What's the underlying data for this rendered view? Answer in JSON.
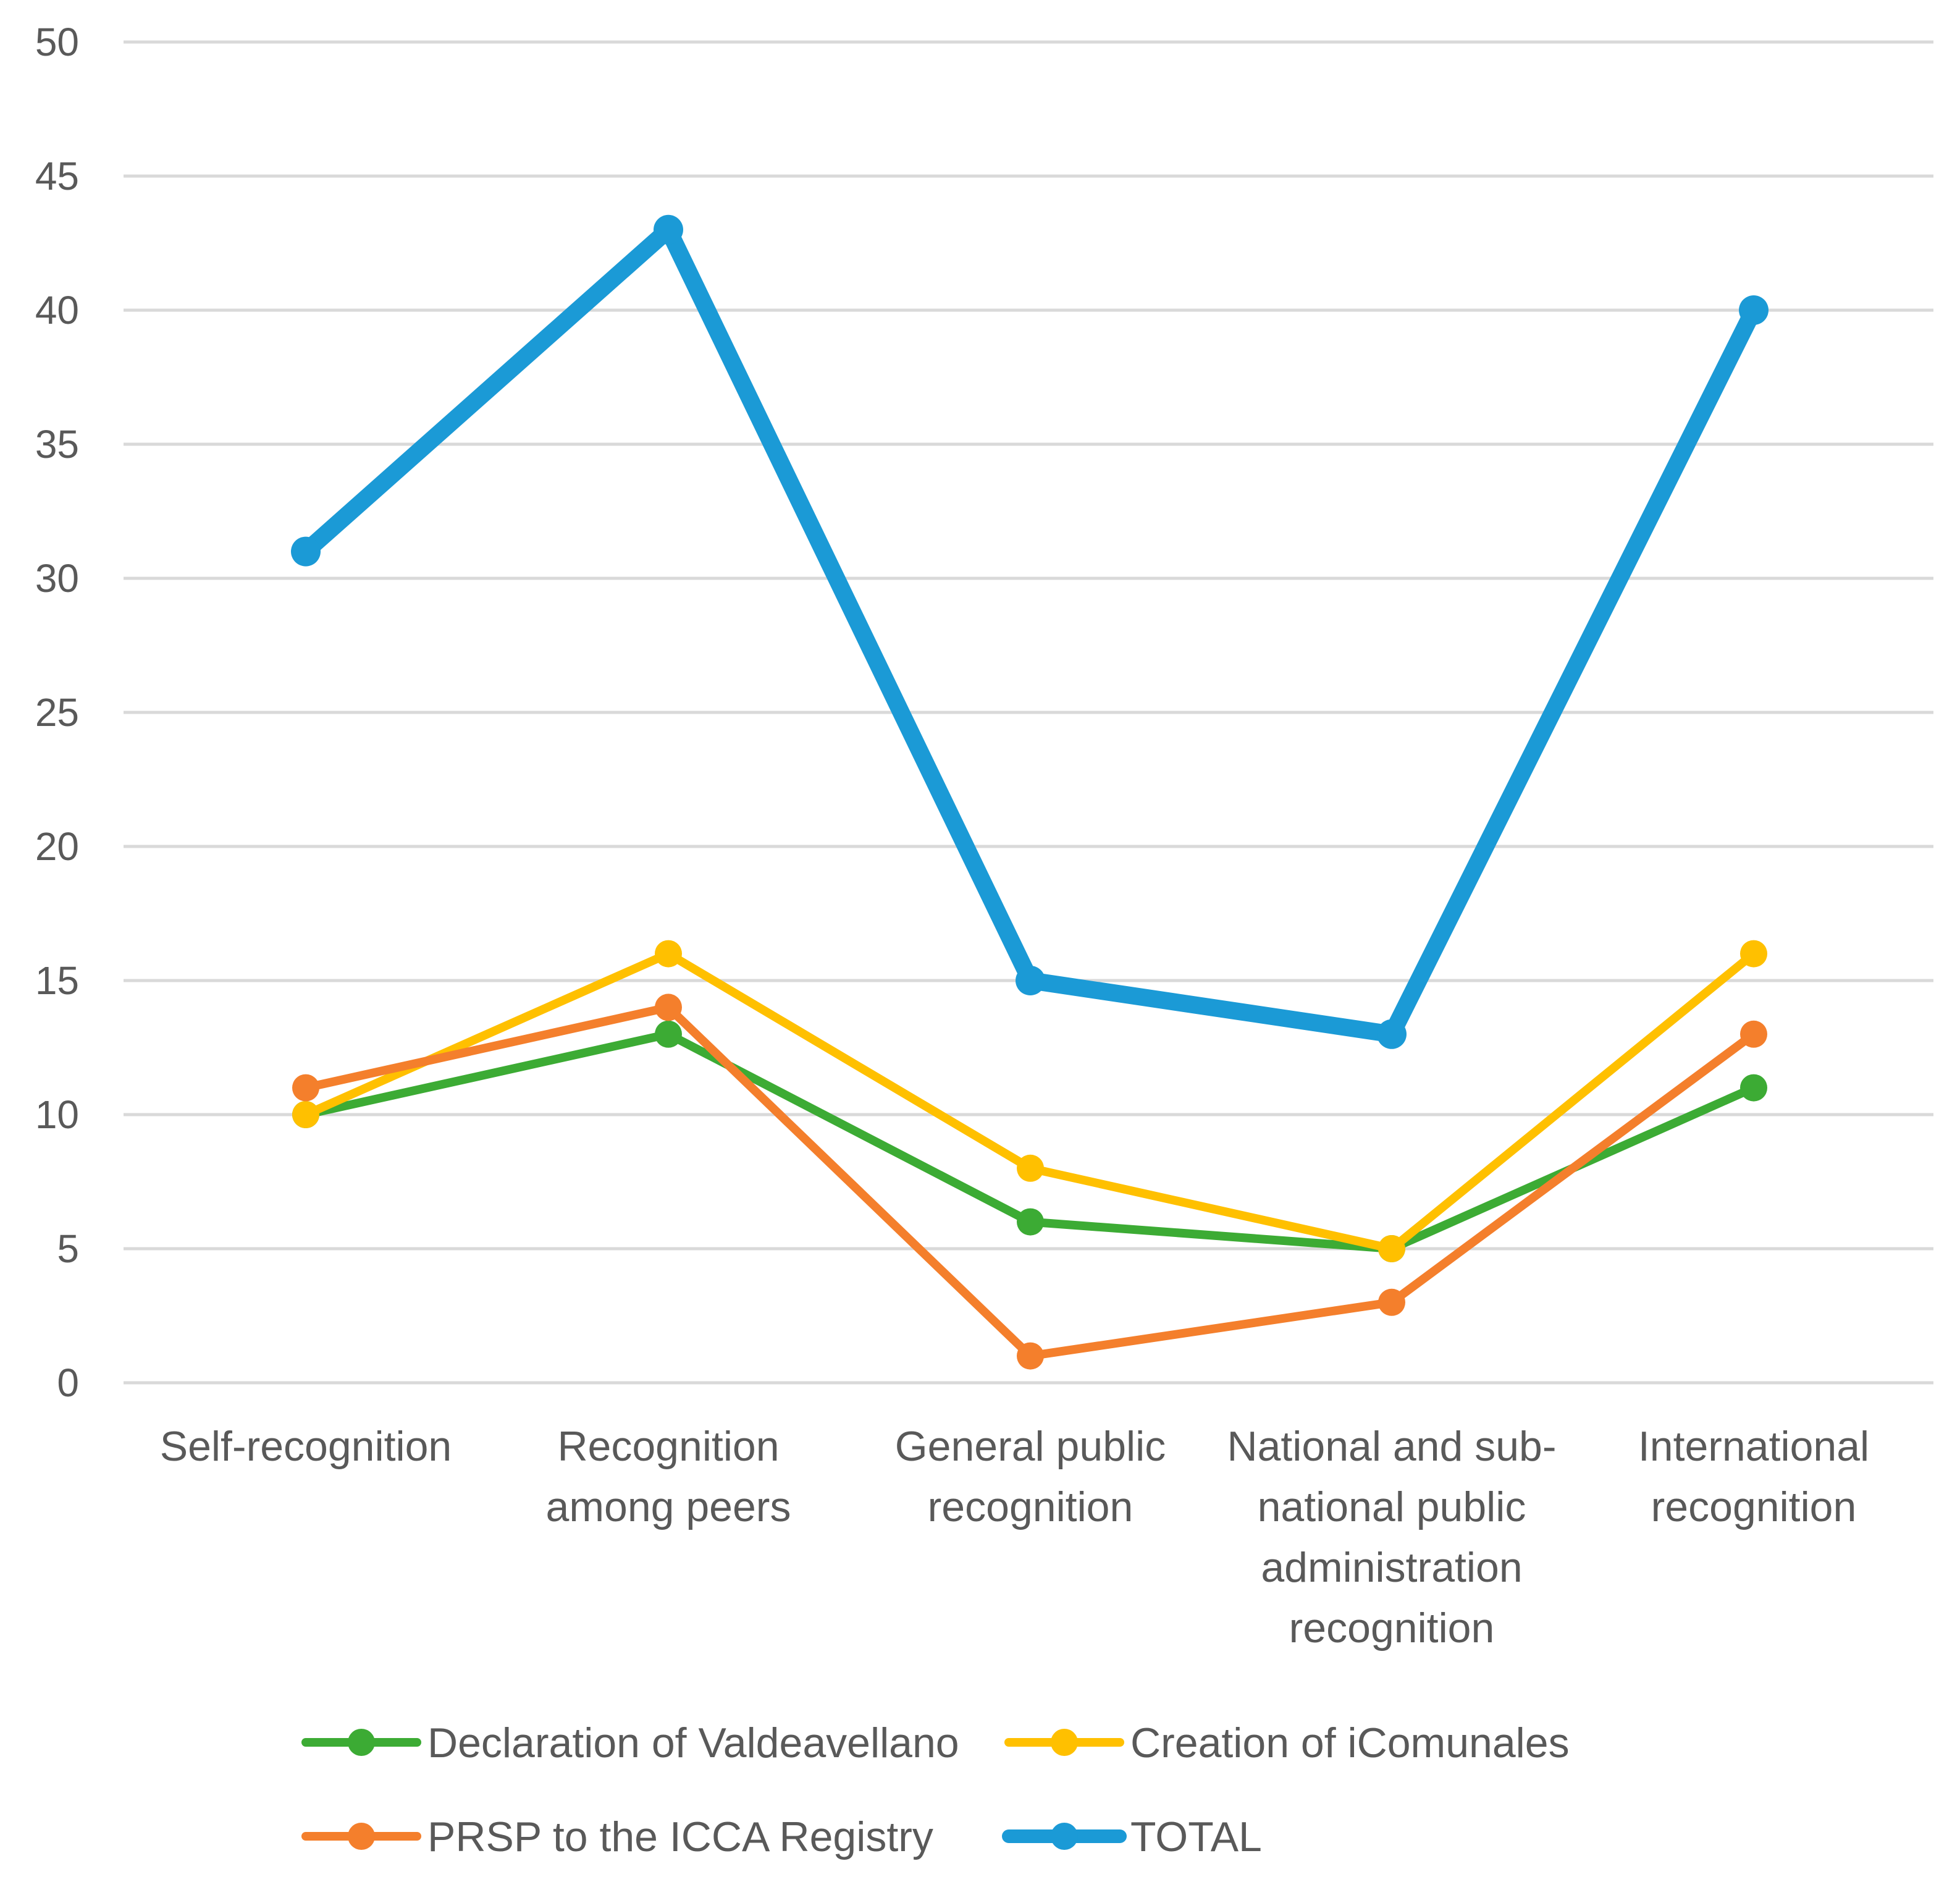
{
  "chart_data": {
    "type": "line",
    "title": "",
    "xlabel": "",
    "ylabel": "",
    "ylim": [
      0,
      50
    ],
    "yticks": [
      0,
      5,
      10,
      15,
      20,
      25,
      30,
      35,
      40,
      45,
      50
    ],
    "grid": true,
    "legend_position": "bottom",
    "categories": [
      [
        "Self-recognition"
      ],
      [
        "Recognition",
        "among peers"
      ],
      [
        "General public",
        "recognition"
      ],
      [
        "National and sub-",
        "national public",
        "administration",
        "recognition"
      ],
      [
        "International",
        "recognition"
      ]
    ],
    "series": [
      {
        "name": "Declaration of Valdeavellano",
        "color": "#3cab34",
        "values": [
          10,
          13,
          6,
          5,
          11
        ]
      },
      {
        "name": "Creation of iComunales",
        "color": "#ffc000",
        "values": [
          10,
          16,
          8,
          5,
          16
        ]
      },
      {
        "name": "PRSP to the ICCA Registry",
        "color": "#f47f2c",
        "values": [
          11,
          14,
          1,
          3,
          13
        ]
      },
      {
        "name": "TOTAL",
        "color": "#1b9ad6",
        "values": [
          31,
          43,
          15,
          13,
          40
        ]
      }
    ]
  }
}
